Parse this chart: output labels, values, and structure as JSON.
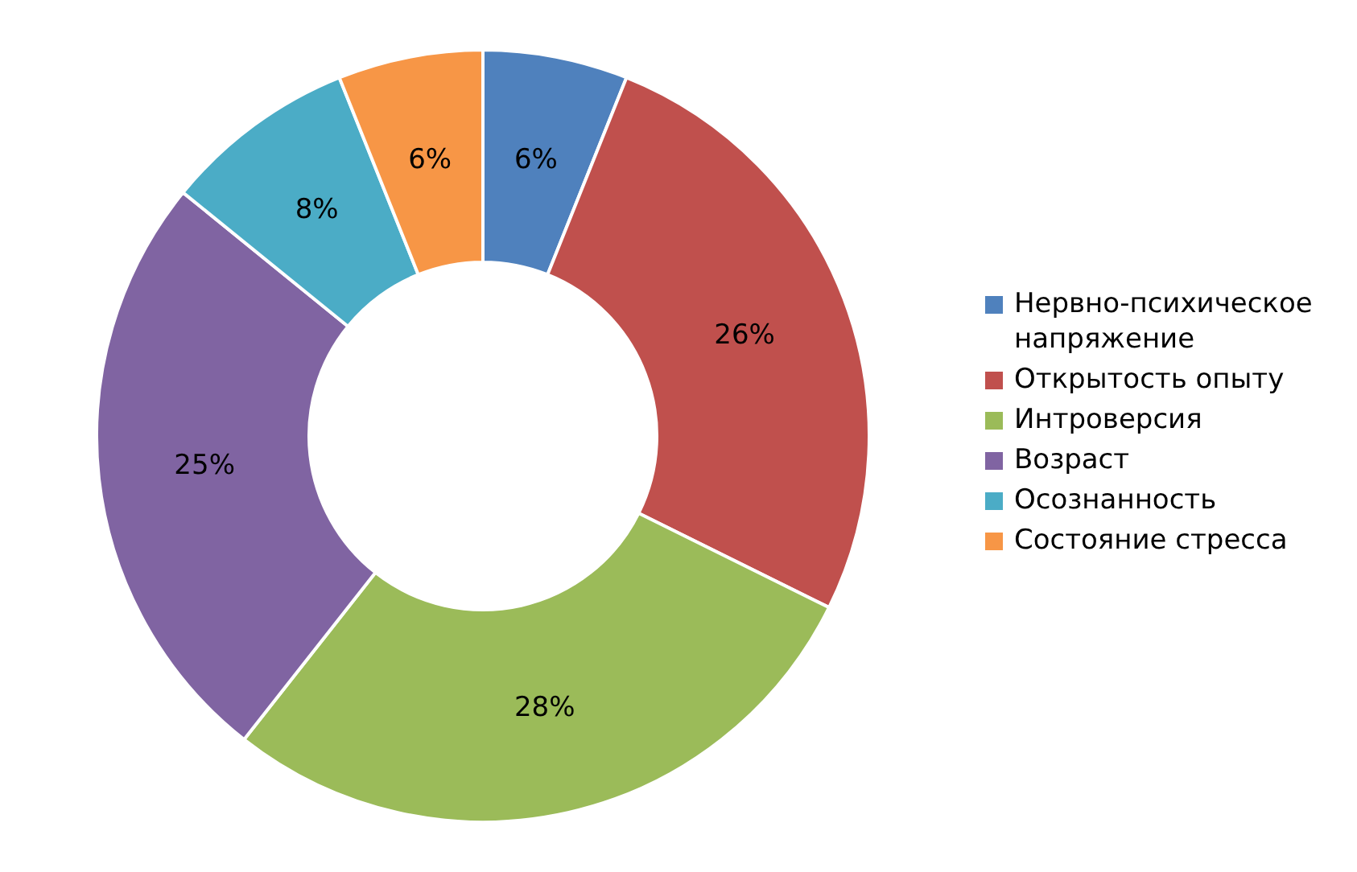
{
  "chart_data": {
    "type": "donut",
    "categories": [
      "Нервно-психическое напряжение",
      "Открытость опыту",
      "Интроверсия",
      "Возраст",
      "Осознанность",
      "Состояние стресса"
    ],
    "values": [
      6,
      26,
      28,
      25,
      8,
      6
    ],
    "value_labels": [
      "6%",
      "26%",
      "28%",
      "25%",
      "8%",
      "6%"
    ],
    "colors": [
      "#4f81bd",
      "#c0504d",
      "#9bbb59",
      "#8064a2",
      "#4bacc6",
      "#f79646"
    ],
    "legend": "right"
  }
}
